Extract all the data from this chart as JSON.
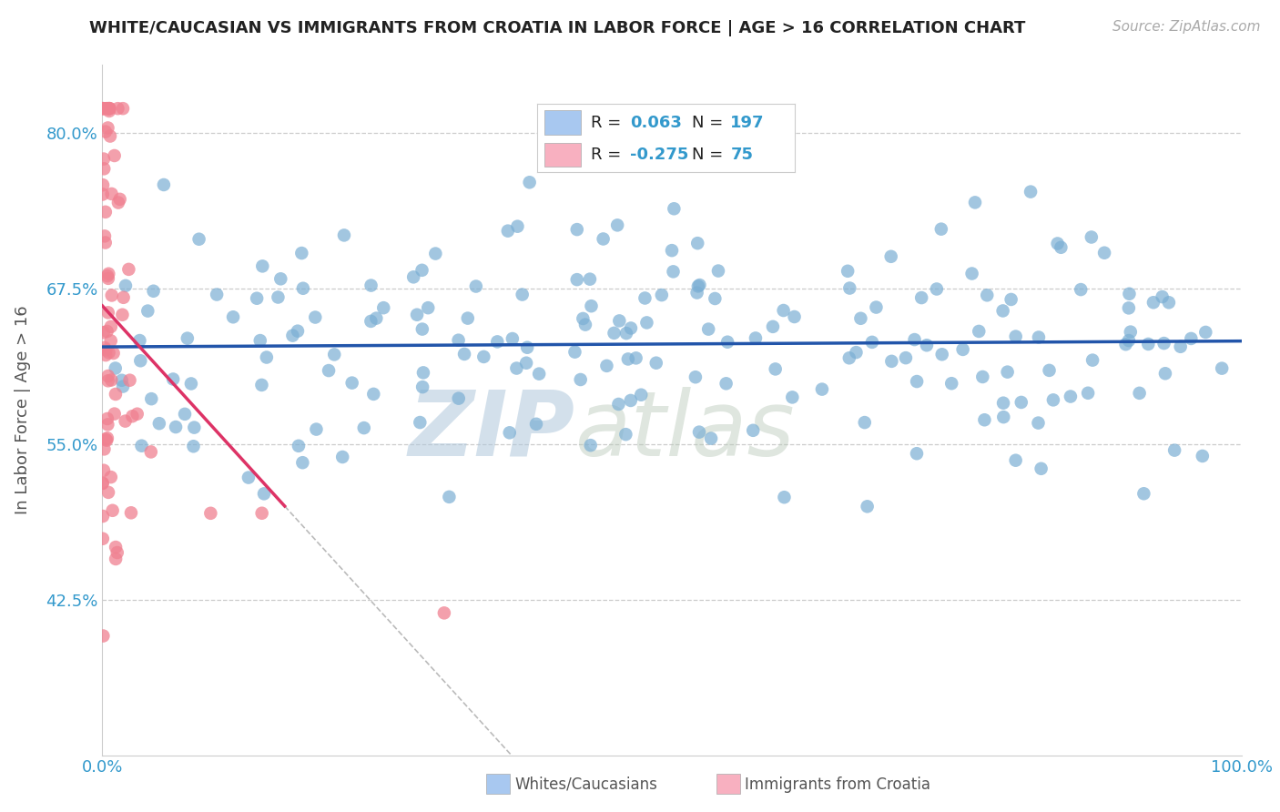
{
  "title": "WHITE/CAUCASIAN VS IMMIGRANTS FROM CROATIA IN LABOR FORCE | AGE > 16 CORRELATION CHART",
  "source": "Source: ZipAtlas.com",
  "ylabel": "In Labor Force | Age > 16",
  "r_values": [
    0.063,
    -0.275
  ],
  "n_values": [
    197,
    75
  ],
  "xlim": [
    0.0,
    1.0
  ],
  "ylim": [
    0.3,
    0.855
  ],
  "yticks": [
    0.425,
    0.55,
    0.675,
    0.8
  ],
  "ytick_labels": [
    "42.5%",
    "55.0%",
    "67.5%",
    "80.0%"
  ],
  "xtick_labels": [
    "0.0%",
    "100.0%"
  ],
  "watermark_zip": "ZIP",
  "watermark_atlas": "atlas",
  "background_color": "#ffffff",
  "grid_color": "#cccccc",
  "blue_dot_color": "#7bafd4",
  "pink_dot_color": "#f08090",
  "blue_line_color": "#2255aa",
  "pink_line_color": "#dd3366",
  "title_color": "#222222",
  "source_color": "#aaaaaa",
  "ylabel_color": "#555555",
  "tick_color": "#3399cc"
}
